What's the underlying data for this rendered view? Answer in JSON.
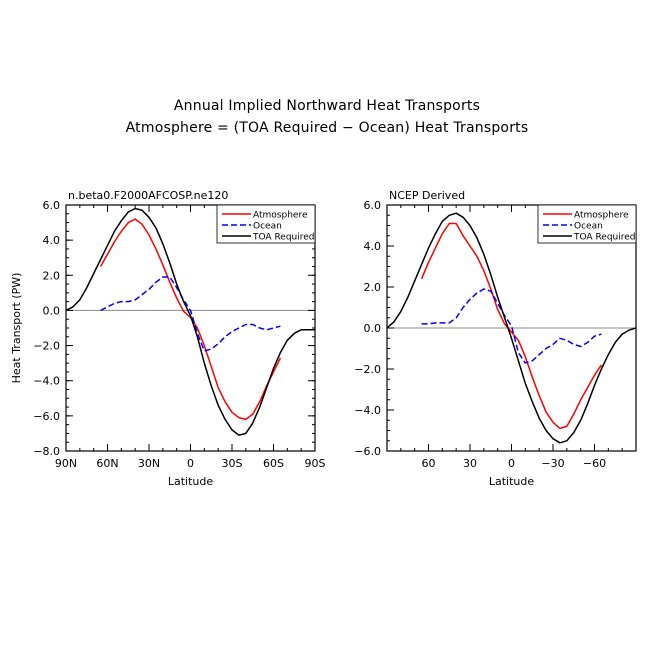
{
  "title": "Annual Implied Northward Heat Transports",
  "subtitle": "Atmosphere = (TOA Required − Ocean) Heat Transports",
  "colors": {
    "atmosphere": "#ff0000",
    "ocean": "#0000ff",
    "toa": "#000000",
    "zero_line": "#888888"
  },
  "chart_data": [
    {
      "type": "line",
      "panel_label": "n.beta0.F2000AFCOSP.ne120",
      "xlabel": "Latitude",
      "ylabel": "Heat Transport (PW)",
      "xlim": [
        90,
        -90
      ],
      "ylim": [
        -8,
        6
      ],
      "x_ticks": [
        90,
        60,
        30,
        0,
        -30,
        -60,
        -90
      ],
      "x_tick_labels": [
        "90N",
        "60N",
        "30N",
        "0",
        "30S",
        "60S",
        "90S"
      ],
      "y_ticks": [
        6,
        4,
        2,
        0,
        -2,
        -4,
        -6,
        -8
      ],
      "y_tick_labels": [
        "6.0",
        "4.0",
        "2.0",
        "0.0",
        "−2.0",
        "−4.0",
        "−6.0",
        "−8.0"
      ],
      "grid": false,
      "legend": "top-right",
      "series": [
        {
          "name": "Atmosphere",
          "style": "solid",
          "color": "#ff0000",
          "x": [
            65,
            60,
            55,
            50,
            45,
            40,
            35,
            30,
            25,
            20,
            15,
            10,
            5,
            0,
            -5,
            -10,
            -15,
            -20,
            -25,
            -30,
            -35,
            -40,
            -45,
            -50,
            -55,
            -60,
            -65
          ],
          "y": [
            2.5,
            3.2,
            3.9,
            4.5,
            5.0,
            5.2,
            4.9,
            4.3,
            3.5,
            2.6,
            1.6,
            0.7,
            -0.05,
            -0.4,
            -1.0,
            -2.0,
            -3.2,
            -4.4,
            -5.2,
            -5.8,
            -6.1,
            -6.2,
            -5.9,
            -5.2,
            -4.3,
            -3.5,
            -2.7
          ]
        },
        {
          "name": "Ocean",
          "style": "dashed",
          "color": "#0000ff",
          "x": [
            65,
            60,
            55,
            50,
            45,
            40,
            35,
            30,
            25,
            20,
            15,
            10,
            5,
            0,
            -5,
            -10,
            -15,
            -20,
            -25,
            -30,
            -35,
            -40,
            -45,
            -50,
            -55,
            -60,
            -65
          ],
          "y": [
            0.0,
            0.2,
            0.4,
            0.5,
            0.5,
            0.6,
            0.9,
            1.2,
            1.6,
            1.9,
            1.9,
            1.3,
            0.6,
            0.0,
            -1.3,
            -2.3,
            -2.2,
            -1.9,
            -1.5,
            -1.2,
            -1.0,
            -0.8,
            -0.8,
            -1.0,
            -1.1,
            -1.0,
            -0.9
          ]
        },
        {
          "name": "TOA Required",
          "style": "solid",
          "color": "#000000",
          "x": [
            90,
            85,
            80,
            75,
            70,
            65,
            60,
            55,
            50,
            45,
            40,
            35,
            30,
            25,
            20,
            15,
            10,
            5,
            0,
            -5,
            -10,
            -15,
            -20,
            -25,
            -30,
            -35,
            -40,
            -45,
            -50,
            -55,
            -60,
            -65,
            -70,
            -75,
            -80,
            -85,
            -90
          ],
          "y": [
            0.0,
            0.2,
            0.6,
            1.3,
            2.1,
            2.9,
            3.7,
            4.5,
            5.1,
            5.6,
            5.8,
            5.7,
            5.3,
            4.7,
            3.8,
            2.7,
            1.5,
            0.5,
            -0.3,
            -1.5,
            -3.0,
            -4.3,
            -5.4,
            -6.2,
            -6.8,
            -7.1,
            -7.0,
            -6.4,
            -5.5,
            -4.4,
            -3.3,
            -2.4,
            -1.7,
            -1.3,
            -1.1,
            -1.1,
            -1.1
          ]
        }
      ]
    },
    {
      "type": "line",
      "panel_label": "NCEP Derived",
      "xlabel": "Latitude",
      "ylabel": "",
      "xlim": [
        90,
        -90
      ],
      "ylim": [
        -6,
        6
      ],
      "x_ticks": [
        60,
        30,
        0,
        -30,
        -60
      ],
      "x_tick_labels": [
        "60",
        "30",
        "0",
        "−30",
        "−60"
      ],
      "y_ticks": [
        6,
        4,
        2,
        0,
        -2,
        -4,
        -6
      ],
      "y_tick_labels": [
        "6.0",
        "4.0",
        "2.0",
        "0.0",
        "−2.0",
        "−4.0",
        "−6.0"
      ],
      "grid": false,
      "legend": "top-right",
      "series": [
        {
          "name": "Atmosphere",
          "style": "solid",
          "color": "#ff0000",
          "x": [
            65,
            60,
            55,
            50,
            45,
            40,
            35,
            30,
            25,
            20,
            15,
            10,
            5,
            0,
            -5,
            -10,
            -15,
            -20,
            -25,
            -30,
            -35,
            -40,
            -45,
            -50,
            -55,
            -60,
            -65
          ],
          "y": [
            2.4,
            3.2,
            3.9,
            4.6,
            5.1,
            5.1,
            4.5,
            4.0,
            3.5,
            2.8,
            1.9,
            0.9,
            0.2,
            -0.2,
            -0.6,
            -1.4,
            -2.4,
            -3.3,
            -4.1,
            -4.6,
            -4.9,
            -4.8,
            -4.2,
            -3.5,
            -2.9,
            -2.3,
            -1.8
          ]
        },
        {
          "name": "Ocean",
          "style": "dashed",
          "color": "#0000ff",
          "x": [
            65,
            60,
            55,
            50,
            45,
            40,
            35,
            30,
            25,
            20,
            15,
            10,
            5,
            0,
            -5,
            -10,
            -15,
            -20,
            -25,
            -30,
            -35,
            -40,
            -45,
            -50,
            -55,
            -60,
            -65
          ],
          "y": [
            0.2,
            0.2,
            0.25,
            0.25,
            0.25,
            0.5,
            1.0,
            1.4,
            1.7,
            1.9,
            1.8,
            1.2,
            0.6,
            0.1,
            -1.2,
            -1.7,
            -1.6,
            -1.3,
            -1.0,
            -0.8,
            -0.5,
            -0.6,
            -0.8,
            -0.9,
            -0.7,
            -0.4,
            -0.3
          ]
        },
        {
          "name": "TOA Required",
          "style": "solid",
          "color": "#000000",
          "x": [
            90,
            85,
            80,
            75,
            70,
            65,
            60,
            55,
            50,
            45,
            40,
            35,
            30,
            25,
            20,
            15,
            10,
            5,
            0,
            -5,
            -10,
            -15,
            -20,
            -25,
            -30,
            -35,
            -40,
            -45,
            -50,
            -55,
            -60,
            -65,
            -70,
            -75,
            -80,
            -85,
            -90
          ],
          "y": [
            0.0,
            0.3,
            0.8,
            1.5,
            2.3,
            3.1,
            3.9,
            4.6,
            5.2,
            5.5,
            5.6,
            5.4,
            5.0,
            4.4,
            3.6,
            2.6,
            1.5,
            0.5,
            -0.5,
            -1.6,
            -2.7,
            -3.6,
            -4.4,
            -5.0,
            -5.4,
            -5.6,
            -5.5,
            -5.1,
            -4.5,
            -3.7,
            -2.8,
            -2.0,
            -1.3,
            -0.7,
            -0.3,
            -0.1,
            0.0
          ]
        }
      ]
    }
  ]
}
